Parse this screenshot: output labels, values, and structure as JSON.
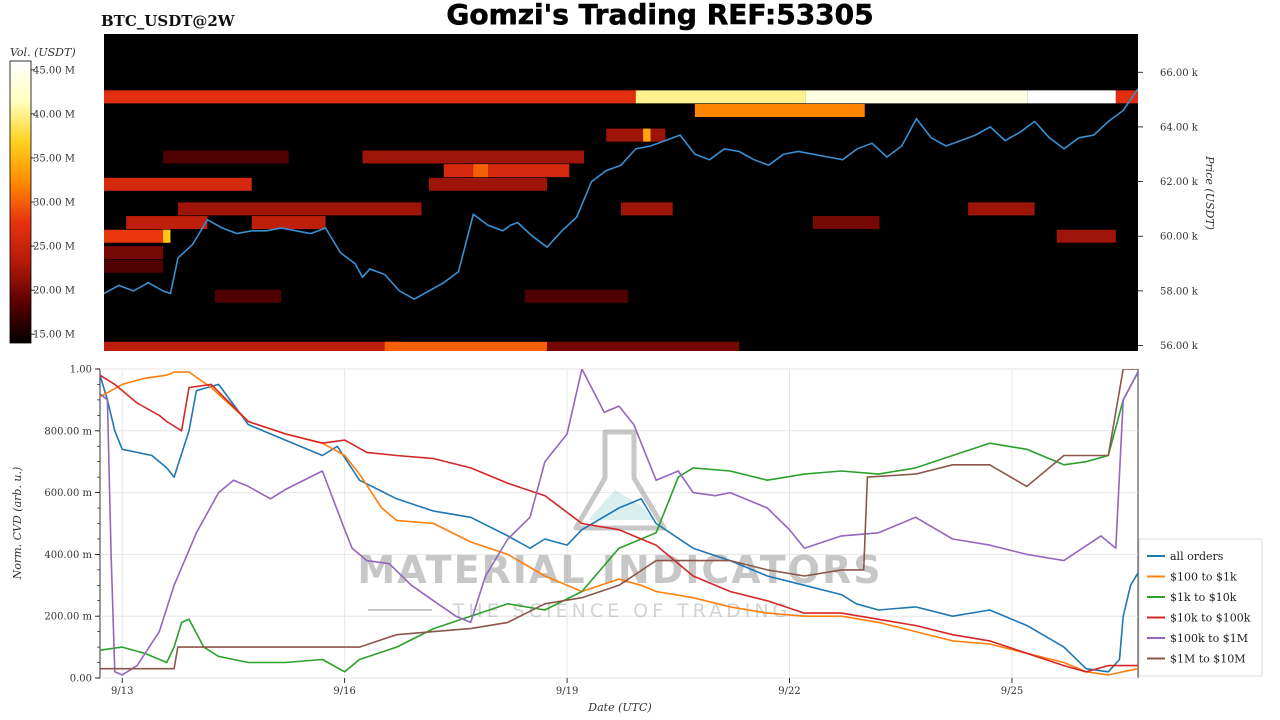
{
  "header": {
    "pair_label": "BTC_USDT@2W",
    "title": "Gomzi's Trading REF:53305"
  },
  "colorbar": {
    "title": "Vol. (USDT)",
    "ticks": [
      "45.00 M",
      "40.00 M",
      "35.00 M",
      "30.00 M",
      "25.00 M",
      "20.00 M",
      "15.00 M"
    ],
    "tick_values": [
      45,
      40,
      35,
      30,
      25,
      20,
      15
    ],
    "range": [
      14,
      46
    ],
    "colors": [
      "#000000",
      "#5a0000",
      "#b41a0a",
      "#e8320f",
      "#ff8c00",
      "#ffd21e",
      "#ffffc0",
      "#ffffff"
    ]
  },
  "watermark": {
    "line1": "MATERIAL INDICATORS",
    "line2": "THE SCIENCE OF TRADING"
  },
  "chart_data": [
    {
      "type": "heatmap",
      "title": "",
      "ylabel": "Price (USDT)",
      "ylim": [
        55.8,
        67.4
      ],
      "y_unit": "k USDT",
      "yticks": [
        {
          "value": 56,
          "label": "56.00 k"
        },
        {
          "value": 58,
          "label": "58.00 k"
        },
        {
          "value": 60,
          "label": "60.00 k"
        },
        {
          "value": 62,
          "label": "62.00 k"
        },
        {
          "value": 64,
          "label": "64.00 k"
        },
        {
          "value": 66,
          "label": "66.00 k"
        }
      ],
      "xlim": [
        0,
        14
      ],
      "bands": [
        {
          "price": 65.1,
          "segments": [
            [
              0,
              7.2,
              27
            ],
            [
              7.2,
              9.5,
              40
            ],
            [
              9.5,
              12.5,
              44
            ],
            [
              12.5,
              13.7,
              46
            ],
            [
              13.7,
              14,
              27
            ]
          ]
        },
        {
          "price": 64.6,
          "segments": [
            [
              8.0,
              10.3,
              32
            ]
          ]
        },
        {
          "price": 63.7,
          "segments": [
            [
              6.8,
              7.6,
              22
            ],
            [
              7.3,
              7.4,
              34
            ]
          ]
        },
        {
          "price": 62.9,
          "segments": [
            [
              0.8,
              2.5,
              18
            ],
            [
              3.5,
              6.5,
              22
            ]
          ]
        },
        {
          "price": 62.4,
          "segments": [
            [
              4.6,
              6.3,
              26
            ],
            [
              5.0,
              5.2,
              30
            ]
          ]
        },
        {
          "price": 61.9,
          "segments": [
            [
              0,
              2.0,
              26
            ],
            [
              4.4,
              6.0,
              22
            ]
          ]
        },
        {
          "price": 61.0,
          "segments": [
            [
              1.0,
              4.3,
              22
            ],
            [
              7.0,
              7.7,
              22
            ],
            [
              11.7,
              12.6,
              22
            ]
          ]
        },
        {
          "price": 60.5,
          "segments": [
            [
              0.3,
              1.4,
              24
            ],
            [
              2.0,
              3.0,
              24
            ],
            [
              9.6,
              10.5,
              20
            ]
          ]
        },
        {
          "price": 60.0,
          "segments": [
            [
              0,
              0.9,
              28
            ],
            [
              0.8,
              0.9,
              36
            ],
            [
              12.9,
              13.7,
              22
            ]
          ]
        },
        {
          "price": 59.4,
          "segments": [
            [
              0,
              0.8,
              20
            ]
          ]
        },
        {
          "price": 58.9,
          "segments": [
            [
              0,
              0.8,
              18
            ]
          ]
        },
        {
          "price": 57.8,
          "segments": [
            [
              1.5,
              2.4,
              18
            ],
            [
              5.7,
              7.1,
              18
            ]
          ]
        },
        {
          "price": 55.9,
          "segments": [
            [
              0,
              4.0,
              24
            ],
            [
              3.8,
              6.0,
              30
            ],
            [
              6.0,
              8.6,
              20
            ]
          ]
        }
      ],
      "series": [
        {
          "name": "BTC price",
          "color": "#3a8fd0",
          "x": [
            0,
            0.2,
            0.4,
            0.6,
            0.8,
            0.9,
            1.0,
            1.2,
            1.4,
            1.6,
            1.8,
            2.0,
            2.2,
            2.4,
            2.6,
            2.8,
            3.0,
            3.2,
            3.4,
            3.5,
            3.6,
            3.8,
            4.0,
            4.2,
            4.4,
            4.6,
            4.8,
            5.0,
            5.2,
            5.4,
            5.5,
            5.6,
            5.8,
            6.0,
            6.2,
            6.4,
            6.6,
            6.8,
            7.0,
            7.2,
            7.4,
            7.6,
            7.8,
            8.0,
            8.2,
            8.4,
            8.6,
            8.8,
            9.0,
            9.2,
            9.4,
            9.6,
            9.8,
            10.0,
            10.2,
            10.4,
            10.6,
            10.8,
            11.0,
            11.2,
            11.4,
            11.6,
            11.8,
            12.0,
            12.2,
            12.4,
            12.6,
            12.8,
            13.0,
            13.2,
            13.4,
            13.6,
            13.8,
            14.0
          ],
          "y": [
            57.9,
            58.2,
            58.0,
            58.3,
            58.0,
            57.9,
            59.2,
            59.7,
            60.6,
            60.3,
            60.1,
            60.2,
            60.2,
            60.3,
            60.2,
            60.1,
            60.3,
            59.4,
            59.0,
            58.5,
            58.8,
            58.6,
            58.0,
            57.7,
            58.0,
            58.3,
            58.7,
            60.8,
            60.4,
            60.2,
            60.4,
            60.5,
            60.0,
            59.6,
            60.2,
            60.7,
            62.0,
            62.4,
            62.6,
            63.2,
            63.3,
            63.5,
            63.7,
            63.0,
            62.8,
            63.2,
            63.1,
            62.8,
            62.6,
            63.0,
            63.1,
            63.0,
            62.9,
            62.8,
            63.2,
            63.4,
            62.9,
            63.3,
            64.3,
            63.6,
            63.3,
            63.5,
            63.7,
            64.0,
            63.5,
            63.8,
            64.2,
            63.6,
            63.2,
            63.6,
            63.7,
            64.2,
            64.6,
            65.4
          ]
        }
      ]
    },
    {
      "type": "line",
      "title": "",
      "xlabel": "Date (UTC)",
      "ylabel": "Norm. CVD (arb. u.)",
      "xlim": [
        0,
        14
      ],
      "ylim": [
        0,
        1
      ],
      "grid": true,
      "xticks": [
        {
          "value": 0.3,
          "label": "9/13"
        },
        {
          "value": 3.3,
          "label": "9/16"
        },
        {
          "value": 6.3,
          "label": "9/19"
        },
        {
          "value": 9.3,
          "label": "9/22"
        },
        {
          "value": 12.3,
          "label": "9/25"
        }
      ],
      "yticks": [
        {
          "value": 0,
          "label": "0.00"
        },
        {
          "value": 0.2,
          "label": "200.00 m"
        },
        {
          "value": 0.4,
          "label": "400.00 m"
        },
        {
          "value": 0.6,
          "label": "600.00 m"
        },
        {
          "value": 0.8,
          "label": "800.00 m"
        },
        {
          "value": 1.0,
          "label": "1.00"
        }
      ],
      "legend_position": "bottom-right",
      "series": [
        {
          "name": "all orders",
          "color": "#1f77b4",
          "x": [
            0,
            0.1,
            0.2,
            0.3,
            0.5,
            0.7,
            0.9,
            1.0,
            1.2,
            1.3,
            1.6,
            2.0,
            2.5,
            3.0,
            3.2,
            3.5,
            4.0,
            4.5,
            5.0,
            5.5,
            5.8,
            6.0,
            6.3,
            6.5,
            7.0,
            7.3,
            7.5,
            8.0,
            8.5,
            9.0,
            9.5,
            10.0,
            10.2,
            10.5,
            11.0,
            11.5,
            12.0,
            12.5,
            13.0,
            13.3,
            13.6,
            13.75,
            13.8,
            13.9,
            14.0
          ],
          "y": [
            0.98,
            0.9,
            0.8,
            0.74,
            0.73,
            0.72,
            0.68,
            0.65,
            0.8,
            0.93,
            0.95,
            0.82,
            0.77,
            0.72,
            0.75,
            0.64,
            0.58,
            0.54,
            0.52,
            0.46,
            0.42,
            0.45,
            0.43,
            0.48,
            0.55,
            0.58,
            0.5,
            0.42,
            0.38,
            0.33,
            0.3,
            0.27,
            0.24,
            0.22,
            0.23,
            0.2,
            0.22,
            0.17,
            0.1,
            0.03,
            0.02,
            0.06,
            0.2,
            0.3,
            0.34
          ]
        },
        {
          "name": "$100 to $1k",
          "color": "#ff7f0e",
          "x": [
            0,
            0.3,
            0.6,
            0.9,
            1.0,
            1.2,
            1.5,
            2.0,
            2.5,
            3.0,
            3.3,
            3.5,
            3.8,
            4.0,
            4.5,
            5.0,
            5.5,
            6.0,
            6.5,
            7.0,
            7.3,
            7.5,
            8.0,
            8.5,
            9.0,
            9.5,
            10.0,
            10.5,
            11.0,
            11.5,
            12.0,
            12.5,
            13.0,
            13.3,
            13.6,
            14.0
          ],
          "y": [
            0.91,
            0.95,
            0.97,
            0.98,
            0.99,
            0.99,
            0.94,
            0.83,
            0.79,
            0.76,
            0.72,
            0.66,
            0.55,
            0.51,
            0.5,
            0.44,
            0.4,
            0.33,
            0.28,
            0.32,
            0.3,
            0.28,
            0.26,
            0.23,
            0.21,
            0.2,
            0.2,
            0.18,
            0.15,
            0.12,
            0.11,
            0.08,
            0.05,
            0.02,
            0.01,
            0.03
          ]
        },
        {
          "name": "$1k to $10k",
          "color": "#2ca02c",
          "x": [
            0,
            0.3,
            0.6,
            0.9,
            1.0,
            1.1,
            1.2,
            1.4,
            1.6,
            2.0,
            2.5,
            3.0,
            3.3,
            3.5,
            4.0,
            4.5,
            5.0,
            5.5,
            6.0,
            6.5,
            7.0,
            7.5,
            7.8,
            8.0,
            8.5,
            9.0,
            9.5,
            10.0,
            10.5,
            11.0,
            11.5,
            12.0,
            12.5,
            13.0,
            13.3,
            13.6,
            13.8,
            14.0
          ],
          "y": [
            0.09,
            0.1,
            0.08,
            0.05,
            0.1,
            0.18,
            0.19,
            0.1,
            0.07,
            0.05,
            0.05,
            0.06,
            0.02,
            0.06,
            0.1,
            0.16,
            0.2,
            0.24,
            0.22,
            0.28,
            0.42,
            0.47,
            0.65,
            0.68,
            0.67,
            0.64,
            0.66,
            0.67,
            0.66,
            0.68,
            0.72,
            0.76,
            0.74,
            0.69,
            0.7,
            0.72,
            0.9,
            0.99
          ]
        },
        {
          "name": "$10k to $100k",
          "color": "#d62728",
          "x": [
            0,
            0.2,
            0.5,
            0.8,
            0.9,
            1.1,
            1.2,
            1.5,
            2.0,
            2.5,
            3.0,
            3.3,
            3.6,
            4.0,
            4.5,
            5.0,
            5.5,
            6.0,
            6.5,
            7.0,
            7.3,
            7.5,
            8.0,
            8.5,
            9.0,
            9.5,
            10.0,
            10.5,
            11.0,
            11.5,
            12.0,
            12.5,
            13.0,
            13.3,
            13.6,
            14.0
          ],
          "y": [
            0.98,
            0.95,
            0.89,
            0.85,
            0.83,
            0.8,
            0.94,
            0.95,
            0.83,
            0.79,
            0.76,
            0.77,
            0.73,
            0.72,
            0.71,
            0.68,
            0.63,
            0.59,
            0.5,
            0.48,
            0.45,
            0.43,
            0.33,
            0.28,
            0.25,
            0.21,
            0.21,
            0.19,
            0.17,
            0.14,
            0.12,
            0.08,
            0.04,
            0.02,
            0.04,
            0.04
          ]
        },
        {
          "name": "$100k to $1M",
          "color": "#9467bd",
          "x": [
            0,
            0.1,
            0.15,
            0.2,
            0.3,
            0.5,
            0.8,
            1.0,
            1.3,
            1.6,
            1.8,
            2.0,
            2.3,
            2.5,
            3.0,
            3.3,
            3.4,
            3.6,
            3.9,
            4.2,
            4.5,
            4.8,
            5.0,
            5.2,
            5.5,
            5.8,
            6.0,
            6.3,
            6.5,
            6.8,
            7.0,
            7.2,
            7.5,
            7.8,
            8.0,
            8.3,
            8.5,
            9.0,
            9.3,
            9.5,
            10.0,
            10.5,
            11.0,
            11.5,
            12.0,
            12.5,
            13.0,
            13.5,
            13.7,
            13.8,
            14.0
          ],
          "y": [
            0.92,
            0.9,
            0.4,
            0.02,
            0.01,
            0.04,
            0.15,
            0.3,
            0.47,
            0.6,
            0.64,
            0.62,
            0.58,
            0.61,
            0.67,
            0.48,
            0.42,
            0.38,
            0.37,
            0.3,
            0.25,
            0.2,
            0.18,
            0.33,
            0.45,
            0.52,
            0.7,
            0.79,
            1.0,
            0.86,
            0.88,
            0.82,
            0.64,
            0.67,
            0.6,
            0.59,
            0.6,
            0.55,
            0.48,
            0.42,
            0.46,
            0.47,
            0.52,
            0.45,
            0.43,
            0.4,
            0.38,
            0.46,
            0.42,
            0.9,
            0.99
          ]
        },
        {
          "name": "$1M to $10M",
          "color": "#8c564b",
          "x": [
            0,
            0.5,
            1.0,
            1.05,
            2.5,
            3.0,
            3.5,
            4.0,
            4.5,
            5.0,
            5.5,
            6.0,
            6.5,
            7.0,
            7.5,
            8.0,
            8.5,
            9.0,
            9.5,
            10.0,
            10.3,
            10.35,
            11.0,
            11.5,
            12.0,
            12.5,
            13.0,
            13.6,
            13.8,
            14.0
          ],
          "y": [
            0.03,
            0.03,
            0.03,
            0.1,
            0.1,
            0.1,
            0.1,
            0.14,
            0.15,
            0.16,
            0.18,
            0.24,
            0.26,
            0.3,
            0.38,
            0.38,
            0.38,
            0.35,
            0.33,
            0.35,
            0.35,
            0.65,
            0.66,
            0.69,
            0.69,
            0.62,
            0.72,
            0.72,
            1.0,
            1.0
          ]
        }
      ]
    }
  ]
}
